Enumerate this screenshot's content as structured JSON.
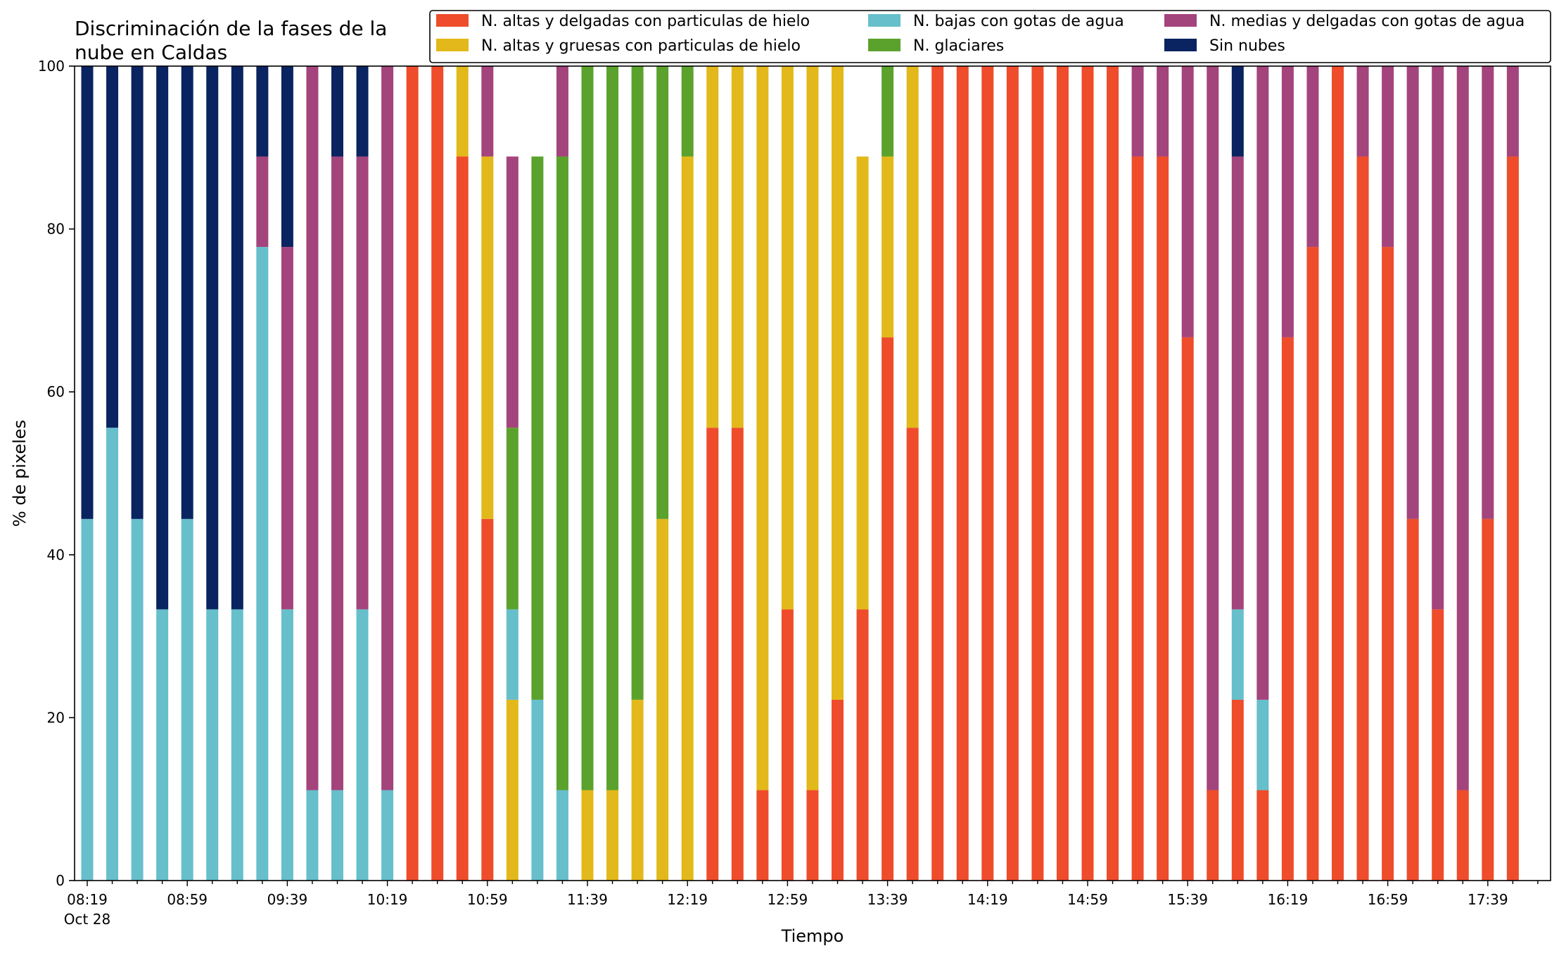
{
  "chart_data": {
    "type": "bar",
    "stacked": true,
    "title": "Discriminación de la fases de la\nnube en Caldas",
    "xlabel": "Tiempo",
    "ylabel": "% de pixeles",
    "ylim": [
      0,
      100
    ],
    "yticks": [
      0,
      20,
      40,
      60,
      80,
      100
    ],
    "grid": false,
    "legend_position": "top-right",
    "legend_columns": 3,
    "x_tick_labels": [
      "08:19",
      "08:59",
      "09:39",
      "10:19",
      "10:59",
      "11:39",
      "12:19",
      "12:59",
      "13:39",
      "14:19",
      "14:59",
      "15:39",
      "16:19",
      "16:59",
      "17:39"
    ],
    "x_tick_sublabel": "Oct 28",
    "categories": [
      "08:19",
      "08:29",
      "08:39",
      "08:49",
      "08:59",
      "09:09",
      "09:19",
      "09:29",
      "09:39",
      "09:49",
      "09:59",
      "10:09",
      "10:19",
      "10:29",
      "10:39",
      "10:49",
      "10:59",
      "11:09",
      "11:19",
      "11:29",
      "11:39",
      "11:49",
      "11:59",
      "12:09",
      "12:19",
      "12:29",
      "12:39",
      "12:49",
      "12:59",
      "13:09",
      "13:19",
      "13:29",
      "13:39",
      "13:49",
      "13:59",
      "14:09",
      "14:19",
      "14:29",
      "14:39",
      "14:49",
      "14:59",
      "15:09",
      "15:19",
      "15:29",
      "15:39",
      "15:49",
      "15:59",
      "16:09",
      "16:19",
      "16:29",
      "16:39",
      "16:49",
      "16:59",
      "17:09",
      "17:19",
      "17:29",
      "17:39",
      "17:49"
    ],
    "series": [
      {
        "name": "N. altas y delgadas con particulas de hielo",
        "color": "#ee4c2b",
        "values": [
          0,
          0,
          0,
          0,
          0,
          0,
          0,
          0,
          0,
          0,
          0,
          0,
          0,
          100,
          100,
          88.9,
          44.4,
          0,
          0,
          0,
          0,
          0,
          0,
          0,
          0,
          55.6,
          55.6,
          11.1,
          33.3,
          11.1,
          22.2,
          33.3,
          66.7,
          55.6,
          100,
          100,
          100,
          100,
          100,
          100,
          100,
          100,
          88.9,
          88.9,
          66.7,
          11.1,
          22.2,
          11.1,
          66.7,
          77.8,
          100,
          88.9,
          77.8,
          44.4,
          33.3,
          11.1,
          44.4,
          88.9
        ]
      },
      {
        "name": "N. altas y gruesas con particulas de hielo",
        "color": "#e3b81a",
        "values": [
          0,
          0,
          0,
          0,
          0,
          0,
          0,
          0,
          0,
          0,
          0,
          0,
          0,
          0,
          0,
          11.1,
          44.5,
          22.2,
          0,
          0,
          11.1,
          11.1,
          22.2,
          44.4,
          88.9,
          44.4,
          44.4,
          88.9,
          66.7,
          88.9,
          77.8,
          55.6,
          22.2,
          44.4,
          0,
          0,
          0,
          0,
          0,
          0,
          0,
          0,
          0,
          0,
          0,
          0,
          0,
          0,
          0,
          0,
          0,
          0,
          0,
          0,
          0,
          0,
          0,
          0
        ]
      },
      {
        "name": "N. bajas con gotas de agua",
        "color": "#66bfcb",
        "values": [
          44.4,
          55.6,
          44.4,
          33.3,
          44.4,
          33.3,
          33.3,
          77.8,
          33.3,
          11.1,
          11.1,
          33.3,
          11.1,
          0,
          0,
          0,
          0,
          11.1,
          22.2,
          11.1,
          0,
          0,
          0,
          0,
          0,
          0,
          0,
          0,
          0,
          0,
          0,
          0,
          0,
          0,
          0,
          0,
          0,
          0,
          0,
          0,
          0,
          0,
          0,
          0,
          0,
          0,
          11.1,
          11.1,
          0,
          0,
          0,
          0,
          0,
          0,
          0,
          0,
          0,
          0
        ]
      },
      {
        "name": "N. glaciares",
        "color": "#5ba22d",
        "values": [
          0,
          0,
          0,
          0,
          0,
          0,
          0,
          0,
          0,
          0,
          0,
          0,
          0,
          0,
          0,
          0,
          0,
          22.3,
          66.7,
          77.8,
          88.9,
          88.9,
          77.8,
          55.6,
          11.1,
          0,
          0,
          0,
          0,
          0,
          0,
          0,
          11.1,
          0,
          0,
          0,
          0,
          0,
          0,
          0,
          0,
          0,
          0,
          0,
          0,
          0,
          0,
          0,
          0,
          0,
          0,
          0,
          0,
          0,
          0,
          0,
          0,
          0
        ]
      },
      {
        "name": "N. medias y delgadas con gotas de agua",
        "color": "#a4447c",
        "values": [
          0,
          0,
          0,
          0,
          0,
          0,
          0,
          11.1,
          44.5,
          88.9,
          77.8,
          55.6,
          88.9,
          0,
          0,
          0,
          11.1,
          33.3,
          0,
          11.1,
          0,
          0,
          0,
          0,
          0,
          0,
          0,
          0,
          0,
          0,
          0,
          0,
          0,
          0,
          0,
          0,
          0,
          0,
          0,
          0,
          0,
          0,
          11.1,
          11.1,
          33.3,
          88.9,
          55.6,
          77.8,
          33.3,
          22.2,
          0,
          11.1,
          22.2,
          55.6,
          66.7,
          88.9,
          55.6,
          11.1
        ]
      },
      {
        "name": "Sin nubes",
        "color": "#0a2361",
        "values": [
          55.6,
          44.4,
          55.6,
          66.7,
          55.6,
          66.7,
          66.7,
          11.1,
          22.2,
          0,
          11.1,
          11.1,
          0,
          0,
          0,
          0,
          0,
          0,
          0,
          0,
          0,
          0,
          0,
          0,
          0,
          0,
          0,
          0,
          0,
          0,
          0,
          0,
          0,
          0,
          0,
          0,
          0,
          0,
          0,
          0,
          0,
          0,
          0,
          0,
          0,
          0,
          11.1,
          0,
          0,
          0,
          0,
          0,
          0,
          0,
          0,
          0,
          0,
          0
        ]
      }
    ]
  }
}
